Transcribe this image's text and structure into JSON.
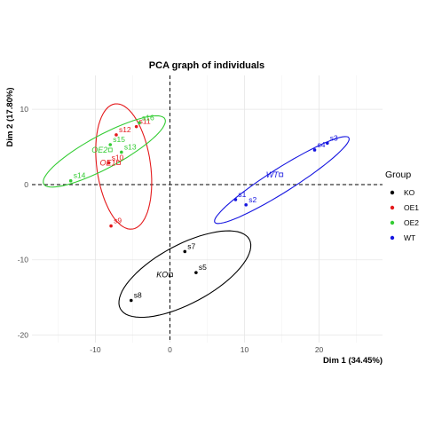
{
  "chart_data": {
    "type": "scatter",
    "title": "PCA graph of individuals",
    "xlabel": "Dim 1 (34.45%)",
    "ylabel": "Dim 2 (17.80%)",
    "xlim": [
      -18.5,
      28.5
    ],
    "ylim": [
      -21,
      14.5
    ],
    "x_ticks": [
      -10,
      0,
      10,
      20
    ],
    "y_ticks": [
      -20,
      -10,
      0,
      10
    ],
    "grid": true,
    "legend": {
      "title": "Group",
      "position": "right"
    },
    "colors": {
      "KO": "#000000",
      "OE1": "#e41a1c",
      "OE2": "#33cc33",
      "WT": "#1515e0"
    },
    "groups": [
      {
        "name": "KO",
        "color": "#000000",
        "points": [
          {
            "label": "s7",
            "x": 2.0,
            "y": -8.9
          },
          {
            "label": "s5",
            "x": 3.5,
            "y": -11.7
          },
          {
            "label": "s8",
            "x": -5.2,
            "y": -15.4
          }
        ],
        "centroid": {
          "label": "KO",
          "x": 0.1,
          "y": -12.0
        },
        "ellipse": {
          "cx": 2.0,
          "cy": -11.9,
          "rx": 9.8,
          "ry": 3.9,
          "angle_deg": 28
        }
      },
      {
        "name": "OE1",
        "color": "#e41a1c",
        "points": [
          {
            "label": "s12",
            "x": -7.2,
            "y": 6.6
          },
          {
            "label": "s11",
            "x": -4.5,
            "y": 7.7
          },
          {
            "label": "s10",
            "x": -8.2,
            "y": 2.9
          },
          {
            "label": "s9",
            "x": -7.9,
            "y": -5.5
          }
        ],
        "centroid": {
          "label": "OE1",
          "x": -6.9,
          "y": 2.9
        },
        "ellipse": {
          "cx": -6.2,
          "cy": 2.4,
          "rx": 3.6,
          "ry": 8.4,
          "angle_deg": 8
        }
      },
      {
        "name": "OE2",
        "color": "#33cc33",
        "points": [
          {
            "label": "s16",
            "x": -4.1,
            "y": 8.2
          },
          {
            "label": "s15",
            "x": -8.0,
            "y": 5.3
          },
          {
            "label": "s13",
            "x": -6.5,
            "y": 4.3
          },
          {
            "label": "s14",
            "x": -13.3,
            "y": 0.5
          }
        ],
        "centroid": {
          "label": "OE2",
          "x": -8.0,
          "y": 4.6
        },
        "ellipse": {
          "cx": -8.8,
          "cy": 4.4,
          "rx": 9.2,
          "ry": 2.2,
          "angle_deg": 28
        }
      },
      {
        "name": "WT",
        "color": "#1515e0",
        "points": [
          {
            "label": "s1",
            "x": 8.8,
            "y": -2.0
          },
          {
            "label": "s2",
            "x": 10.2,
            "y": -2.7
          },
          {
            "label": "s4",
            "x": 19.4,
            "y": 4.6
          },
          {
            "label": "s3",
            "x": 21.1,
            "y": 5.5
          }
        ],
        "centroid": {
          "label": "WT",
          "x": 14.9,
          "y": 1.3
        },
        "ellipse": {
          "cx": 15.0,
          "cy": 0.6,
          "rx": 10.6,
          "ry": 1.6,
          "angle_deg": 32
        }
      }
    ]
  }
}
